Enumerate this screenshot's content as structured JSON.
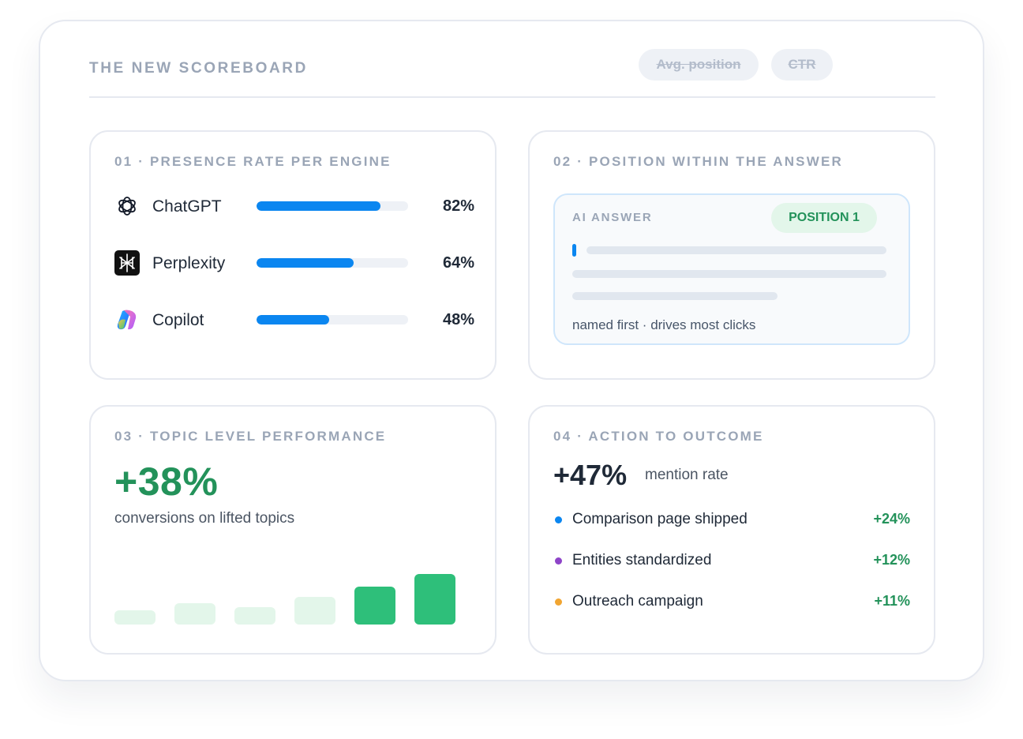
{
  "board": {
    "title": "THE NEW SCOREBOARD",
    "retired_metrics": [
      "Avg. position",
      "CTR"
    ]
  },
  "presence": {
    "title": "01 · PRESENCE RATE PER ENGINE",
    "engines": [
      {
        "name": "ChatGPT",
        "value_label": "82%",
        "rate": 0.82,
        "icon": "chatgpt-icon",
        "color": "#0b86f0"
      },
      {
        "name": "Perplexity",
        "value_label": "64%",
        "rate": 0.64,
        "icon": "perplexity-icon",
        "color": "#0b86f0"
      },
      {
        "name": "Copilot",
        "value_label": "48%",
        "rate": 0.48,
        "icon": "copilot-icon",
        "color": "#0b86f0"
      }
    ]
  },
  "position": {
    "title": "02 · POSITION WITHIN THE ANSWER",
    "answer_label": "AI ANSWER",
    "badge": "POSITION 1",
    "caption": "named first · drives most clicks"
  },
  "topics": {
    "title": "03 · TOPIC LEVEL PERFORMANCE",
    "headline": "+38%",
    "caption": "conversions on lifted topics",
    "bars": [
      {
        "level": 0.28,
        "highlight": false
      },
      {
        "level": 0.42,
        "highlight": false
      },
      {
        "level": 0.34,
        "highlight": false
      },
      {
        "level": 0.55,
        "highlight": false
      },
      {
        "level": 0.75,
        "highlight": true
      },
      {
        "level": 1.0,
        "highlight": true
      }
    ],
    "colors": {
      "muted": "#e3f6ea",
      "highlight": "#2ebf7a"
    }
  },
  "actions": {
    "title": "04 · ACTION TO OUTCOME",
    "headline": "+47%",
    "headline_suffix": "mention rate",
    "items": [
      {
        "label": "Comparison page shipped",
        "delta": "+24%",
        "dot_color": "#0b86f0"
      },
      {
        "label": "Entities standardized",
        "delta": "+12%",
        "dot_color": "#8e44c8"
      },
      {
        "label": "Outreach campaign",
        "delta": "+11%",
        "dot_color": "#f1a531"
      }
    ]
  }
}
